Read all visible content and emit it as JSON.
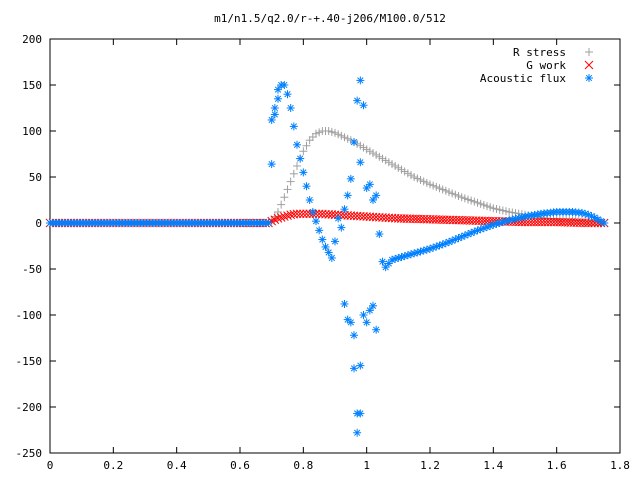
{
  "chart_data": {
    "type": "scatter",
    "title": "m1/n1.5/q2.0/r-+.40-j206/M100.0/512",
    "xlim": [
      0,
      1.8
    ],
    "ylim": [
      -250,
      200
    ],
    "xticks": [
      "0",
      "0.2",
      "0.4",
      "0.6",
      "0.8",
      "1",
      "1.2",
      "1.4",
      "1.6",
      "1.8"
    ],
    "yticks": [
      "200",
      "150",
      "100",
      "50",
      "0",
      "-50",
      "-100",
      "-150",
      "-200",
      "-250"
    ],
    "legend_position": "top-right",
    "grid": false,
    "series": [
      {
        "name": "R stress",
        "color": "#a0a0a0",
        "marker": "plus",
        "points": [
          [
            0,
            0
          ],
          [
            0.2,
            0
          ],
          [
            0.4,
            0
          ],
          [
            0.6,
            0
          ],
          [
            0.69,
            0
          ],
          [
            0.7,
            2
          ],
          [
            0.72,
            12
          ],
          [
            0.74,
            28
          ],
          [
            0.76,
            45
          ],
          [
            0.78,
            62
          ],
          [
            0.8,
            78
          ],
          [
            0.82,
            90
          ],
          [
            0.84,
            97
          ],
          [
            0.86,
            100
          ],
          [
            0.88,
            100
          ],
          [
            0.9,
            98
          ],
          [
            0.95,
            90
          ],
          [
            1.0,
            80
          ],
          [
            1.05,
            70
          ],
          [
            1.1,
            60
          ],
          [
            1.15,
            50
          ],
          [
            1.2,
            42
          ],
          [
            1.25,
            35
          ],
          [
            1.3,
            28
          ],
          [
            1.35,
            22
          ],
          [
            1.4,
            16
          ],
          [
            1.45,
            12
          ],
          [
            1.5,
            9
          ],
          [
            1.55,
            6
          ],
          [
            1.6,
            4
          ],
          [
            1.65,
            3
          ],
          [
            1.7,
            2
          ],
          [
            1.75,
            0
          ]
        ]
      },
      {
        "name": "G work",
        "color": "#ff0000",
        "marker": "cross",
        "points": [
          [
            0,
            0
          ],
          [
            0.2,
            0
          ],
          [
            0.4,
            0
          ],
          [
            0.6,
            0
          ],
          [
            0.69,
            0
          ],
          [
            0.7,
            2
          ],
          [
            0.72,
            5
          ],
          [
            0.74,
            7
          ],
          [
            0.76,
            9
          ],
          [
            0.78,
            10
          ],
          [
            0.8,
            10
          ],
          [
            0.85,
            10
          ],
          [
            0.9,
            9
          ],
          [
            0.95,
            8
          ],
          [
            1.0,
            7
          ],
          [
            1.05,
            6
          ],
          [
            1.1,
            5
          ],
          [
            1.2,
            4
          ],
          [
            1.3,
            3
          ],
          [
            1.4,
            2
          ],
          [
            1.5,
            1
          ],
          [
            1.6,
            1
          ],
          [
            1.7,
            0
          ],
          [
            1.75,
            0
          ]
        ]
      },
      {
        "name": "Acoustic flux",
        "color": "#0080ff",
        "marker": "star",
        "points": [
          [
            0,
            0
          ],
          [
            0.2,
            0
          ],
          [
            0.4,
            0
          ],
          [
            0.6,
            0
          ],
          [
            0.69,
            0
          ],
          [
            0.7,
            64
          ],
          [
            0.7,
            112
          ],
          [
            0.71,
            118
          ],
          [
            0.71,
            125
          ],
          [
            0.72,
            135
          ],
          [
            0.72,
            145
          ],
          [
            0.73,
            150
          ],
          [
            0.74,
            150
          ],
          [
            0.75,
            140
          ],
          [
            0.76,
            125
          ],
          [
            0.77,
            105
          ],
          [
            0.78,
            85
          ],
          [
            0.79,
            70
          ],
          [
            0.8,
            55
          ],
          [
            0.81,
            40
          ],
          [
            0.82,
            25
          ],
          [
            0.83,
            12
          ],
          [
            0.84,
            2
          ],
          [
            0.85,
            -8
          ],
          [
            0.86,
            -18
          ],
          [
            0.87,
            -26
          ],
          [
            0.88,
            -32
          ],
          [
            0.89,
            -38
          ],
          [
            0.9,
            -20
          ],
          [
            0.91,
            5
          ],
          [
            0.92,
            -5
          ],
          [
            0.93,
            15
          ],
          [
            0.93,
            -88
          ],
          [
            0.94,
            30
          ],
          [
            0.94,
            -105
          ],
          [
            0.95,
            48
          ],
          [
            0.95,
            -108
          ],
          [
            0.96,
            88
          ],
          [
            0.96,
            -158
          ],
          [
            0.96,
            -122
          ],
          [
            0.97,
            133
          ],
          [
            0.97,
            -207
          ],
          [
            0.97,
            -228
          ],
          [
            0.98,
            155
          ],
          [
            0.98,
            -207
          ],
          [
            0.98,
            66
          ],
          [
            0.98,
            -155
          ],
          [
            0.99,
            128
          ],
          [
            0.99,
            -100
          ],
          [
            1.0,
            38
          ],
          [
            1.0,
            -108
          ],
          [
            1.01,
            42
          ],
          [
            1.01,
            -95
          ],
          [
            1.02,
            25
          ],
          [
            1.02,
            -90
          ],
          [
            1.03,
            30
          ],
          [
            1.03,
            -116
          ],
          [
            1.04,
            -12
          ],
          [
            1.05,
            -42
          ],
          [
            1.06,
            -48
          ],
          [
            1.08,
            -40
          ],
          [
            1.1,
            -38
          ],
          [
            1.15,
            -33
          ],
          [
            1.2,
            -28
          ],
          [
            1.25,
            -22
          ],
          [
            1.3,
            -15
          ],
          [
            1.35,
            -8
          ],
          [
            1.4,
            -2
          ],
          [
            1.45,
            3
          ],
          [
            1.5,
            7
          ],
          [
            1.55,
            10
          ],
          [
            1.6,
            12
          ],
          [
            1.65,
            12
          ],
          [
            1.68,
            11
          ],
          [
            1.7,
            9
          ],
          [
            1.72,
            6
          ],
          [
            1.74,
            2
          ],
          [
            1.75,
            0
          ]
        ]
      }
    ]
  }
}
